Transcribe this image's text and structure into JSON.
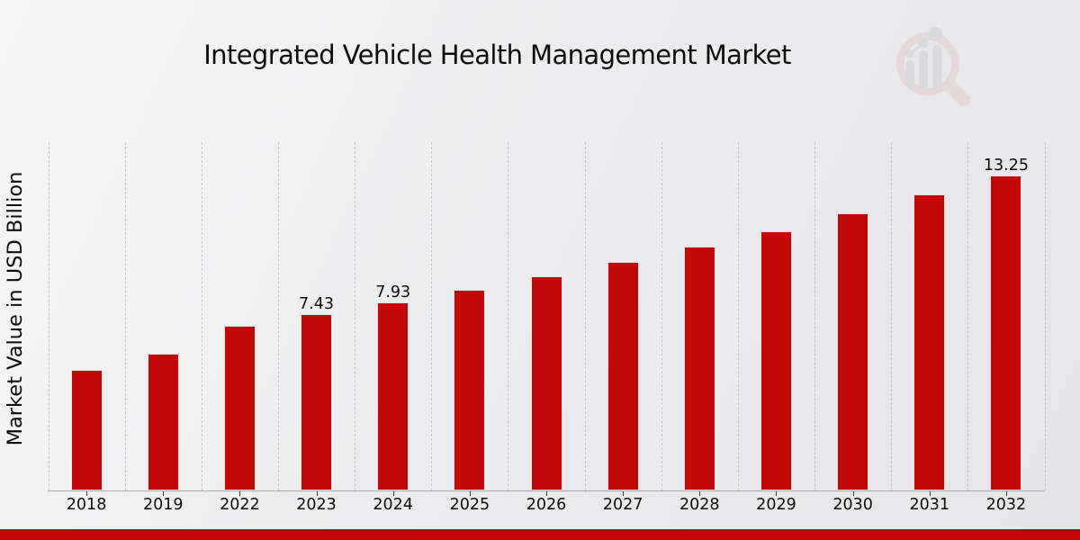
{
  "chart_data": {
    "type": "bar",
    "title": "Integrated Vehicle Health Management Market",
    "ylabel": "Market Value in USD Billion",
    "xlabel": "",
    "categories": [
      "2018",
      "2019",
      "2022",
      "2023",
      "2024",
      "2025",
      "2026",
      "2027",
      "2028",
      "2029",
      "2030",
      "2031",
      "2032"
    ],
    "values": [
      5.08,
      5.76,
      6.94,
      7.43,
      7.93,
      8.46,
      9.03,
      9.62,
      10.26,
      10.91,
      11.66,
      12.48,
      13.25
    ],
    "bar_labels": [
      null,
      null,
      null,
      "7.43",
      "7.93",
      null,
      null,
      null,
      null,
      null,
      null,
      null,
      "13.25"
    ],
    "ylim": [
      0,
      14.62
    ],
    "bar_color": "#c20808",
    "bar_edge_color": "#e3e3e3",
    "grid": "vertical-dashed",
    "gridline_color": "#c6c6c8",
    "axis_color": "#a9a9a9",
    "legend": "none"
  },
  "watermark_logo": {
    "name": "market-research-future-logo",
    "ring_color": "#e7cbcb",
    "handle_color": "#e7cbcb",
    "bars_color": "#cdced3",
    "trend_line_color": "#cdced3"
  },
  "footer": {
    "band_color": "#c10505",
    "band_top_color": "#9c1313"
  }
}
